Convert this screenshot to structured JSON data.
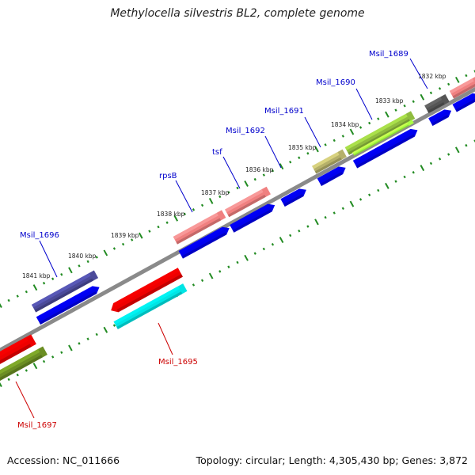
{
  "header": {
    "title": "Methylocella silvestris BL2, complete genome"
  },
  "footer": {
    "accession": "Accession: NC_011666",
    "stats": "Topology: circular; Length: 4,305,430 bp; Genes: 3,872"
  },
  "kbp_labels": [
    "1832 kbp",
    "1833 kbp",
    "1834 kbp",
    "1835 kbp",
    "1836 kbp",
    "1837 kbp",
    "1838 kbp",
    "1839 kbp",
    "1840 kbp",
    "1841 kbp"
  ],
  "gene_labels": [
    {
      "text": "Msil_1689",
      "color": "#0000cc"
    },
    {
      "text": "Msil_1690",
      "color": "#0000cc"
    },
    {
      "text": "Msil_1691",
      "color": "#0000cc"
    },
    {
      "text": "Msil_1692",
      "color": "#0000cc"
    },
    {
      "text": "tsf",
      "color": "#0000cc"
    },
    {
      "text": "rpsB",
      "color": "#0000cc"
    },
    {
      "text": "Msil_1696",
      "color": "#0000cc"
    },
    {
      "text": "Msil_1695",
      "color": "#cc0000"
    },
    {
      "text": "Msil_1697",
      "color": "#cc0000"
    }
  ],
  "colors": {
    "backbone": "#8a8a8a",
    "cds": "#0000ee",
    "tick": "#228b22",
    "gray_gene": "#555555",
    "salmon_gene": "#f08080",
    "olive_green_gene": "#8fbc3f",
    "lime_gene": "#aaff44",
    "khaki_gene": "#b5b06a",
    "slate_blue_gene": "#4b4a9a",
    "red_gene": "#ee0000",
    "cyan_gene": "#00e5e5",
    "dark_olive_gene": "#6b8e23"
  }
}
